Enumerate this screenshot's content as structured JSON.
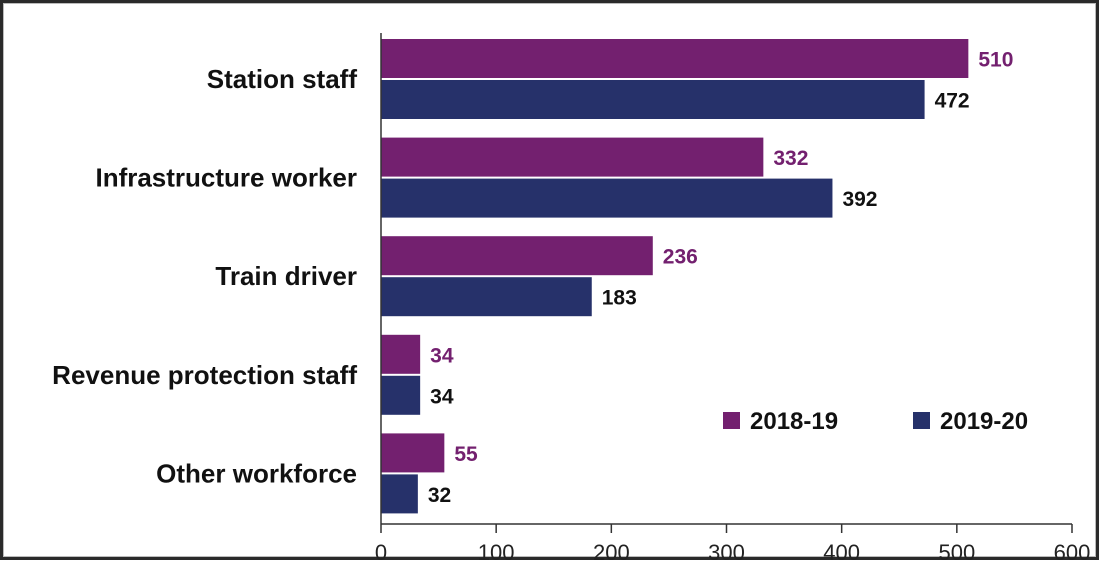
{
  "chart_data": {
    "type": "bar",
    "orientation": "horizontal",
    "categories": [
      "Station staff",
      "Infrastructure worker",
      "Train driver",
      "Revenue protection staff",
      "Other workforce"
    ],
    "series": [
      {
        "name": "2018-19",
        "values": [
          510,
          332,
          236,
          34,
          55
        ],
        "color": "#73206f",
        "label_color": "#73206f"
      },
      {
        "name": "2019-20",
        "values": [
          472,
          392,
          183,
          34,
          32
        ],
        "color": "#26316a",
        "label_color": "#111111"
      }
    ],
    "xlim": [
      0,
      600
    ],
    "xticks": [
      0,
      100,
      200,
      300,
      400,
      500,
      600
    ],
    "grid": false,
    "legend_position": "bottom-right"
  }
}
